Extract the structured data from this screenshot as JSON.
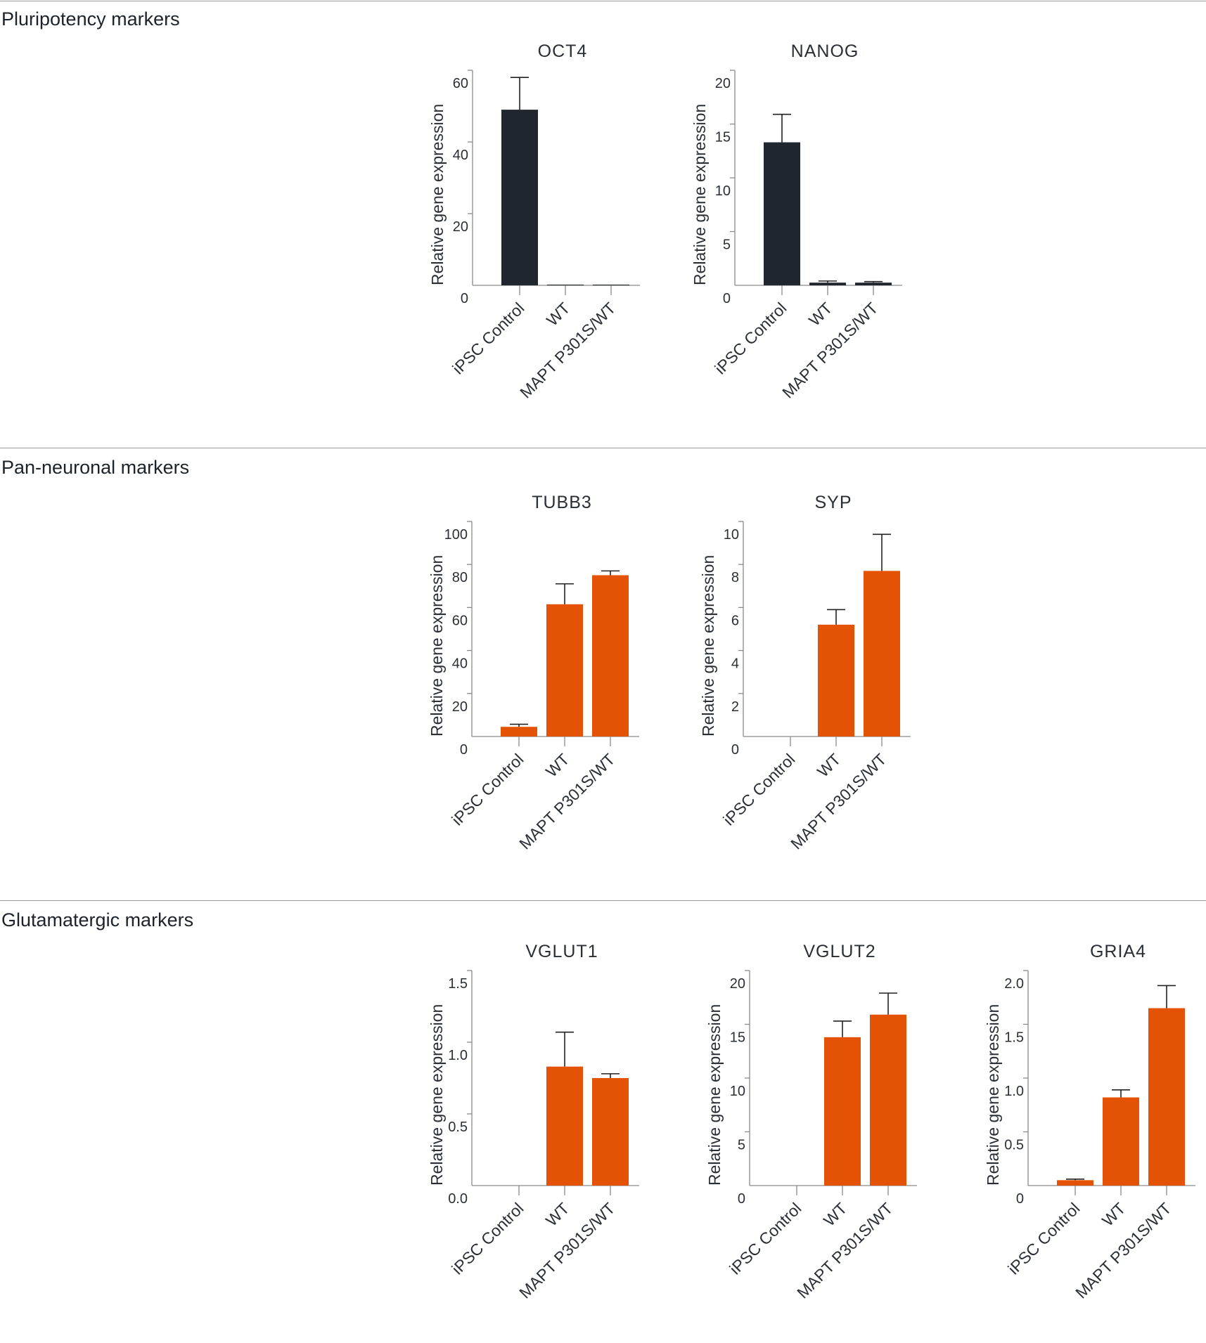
{
  "sections": [
    {
      "title": "Pluripotency markers"
    },
    {
      "title": "Pan-neuronal markers"
    },
    {
      "title": "Glutamatergic markers"
    }
  ],
  "colors": {
    "dark": "#1f262d",
    "orange": "#e35205",
    "axis": "#8a8a8a",
    "rule": "#9a9a9a"
  },
  "chart_data": [
    {
      "type": "bar",
      "section": "Pluripotency markers",
      "title": "OCT4",
      "ylabel": "Relative gene expression",
      "categories": [
        "iPSC Control",
        "WT",
        "MAPT P301S/WT"
      ],
      "values": [
        49,
        0.2,
        0.2
      ],
      "errors": [
        9,
        0,
        0
      ],
      "ylim": [
        0,
        60
      ],
      "yticks": [
        0,
        20,
        40,
        60
      ],
      "tick_labels": [
        "0",
        "20",
        "40",
        "60"
      ],
      "color": "#1f262d"
    },
    {
      "type": "bar",
      "section": "Pluripotency markers",
      "title": "NANOG",
      "ylabel": "Relative gene expression",
      "categories": [
        "iPSC Control",
        "WT",
        "MAPT P301S/WT"
      ],
      "values": [
        13.3,
        0.25,
        0.25
      ],
      "errors": [
        2.6,
        0.15,
        0.1
      ],
      "ylim": [
        0,
        20
      ],
      "yticks": [
        0,
        5,
        10,
        15,
        20
      ],
      "tick_labels": [
        "0",
        "5",
        "10",
        "15",
        "20"
      ],
      "color": "#1f262d"
    },
    {
      "type": "bar",
      "section": "Pan-neuronal markers",
      "title": "TUBB3",
      "ylabel": "Relative gene expression",
      "categories": [
        "iPSC Control",
        "WT",
        "MAPT P301S/WT"
      ],
      "values": [
        4.5,
        61.5,
        75
      ],
      "errors": [
        1.2,
        9.5,
        2
      ],
      "ylim": [
        0,
        100
      ],
      "yticks": [
        0,
        20,
        40,
        60,
        80,
        100
      ],
      "tick_labels": [
        "0",
        "20",
        "40",
        "60",
        "80",
        "100"
      ],
      "color": "#e35205"
    },
    {
      "type": "bar",
      "section": "Pan-neuronal markers",
      "title": "SYP",
      "ylabel": "Relative gene expression",
      "categories": [
        "iPSC Control",
        "WT",
        "MAPT P301S/WT"
      ],
      "values": [
        0,
        5.2,
        7.7
      ],
      "errors": [
        0,
        0.7,
        1.7
      ],
      "ylim": [
        0,
        10
      ],
      "yticks": [
        0,
        2,
        4,
        6,
        8,
        10
      ],
      "tick_labels": [
        "0",
        "2",
        "4",
        "6",
        "8",
        "10"
      ],
      "color": "#e35205"
    },
    {
      "type": "bar",
      "section": "Glutamatergic markers",
      "title": "VGLUT1",
      "ylabel": "Relative gene expression",
      "categories": [
        "iPSC Control",
        "WT",
        "MAPT P301S/WT"
      ],
      "values": [
        0,
        0.83,
        0.75
      ],
      "errors": [
        0,
        0.24,
        0.03
      ],
      "ylim": [
        0,
        1.5
      ],
      "yticks": [
        0,
        0.5,
        1.0,
        1.5
      ],
      "tick_labels": [
        "0.0",
        "0.5",
        "1.0",
        "1.5"
      ],
      "color": "#e35205"
    },
    {
      "type": "bar",
      "section": "Glutamatergic markers",
      "title": "VGLUT2",
      "ylabel": "Relative gene expression",
      "categories": [
        "iPSC Control",
        "WT",
        "MAPT P301S/WT"
      ],
      "values": [
        0,
        13.8,
        15.9
      ],
      "errors": [
        0,
        1.5,
        2
      ],
      "ylim": [
        0,
        20
      ],
      "yticks": [
        0,
        5,
        10,
        15,
        20
      ],
      "tick_labels": [
        "0",
        "5",
        "10",
        "15",
        "20"
      ],
      "color": "#e35205"
    },
    {
      "type": "bar",
      "section": "Glutamatergic markers",
      "title": "GRIA4",
      "ylabel": "Relative gene expression",
      "categories": [
        "iPSC Control",
        "WT",
        "MAPT P301S/WT"
      ],
      "values": [
        0.05,
        0.82,
        1.65
      ],
      "errors": [
        0.01,
        0.07,
        0.21
      ],
      "ylim": [
        0,
        2.0
      ],
      "yticks": [
        0,
        0.5,
        1.0,
        1.5,
        2.0
      ],
      "tick_labels": [
        "0",
        "0.5",
        "1.0",
        "1.5",
        "2.0"
      ],
      "color": "#e35205"
    }
  ]
}
